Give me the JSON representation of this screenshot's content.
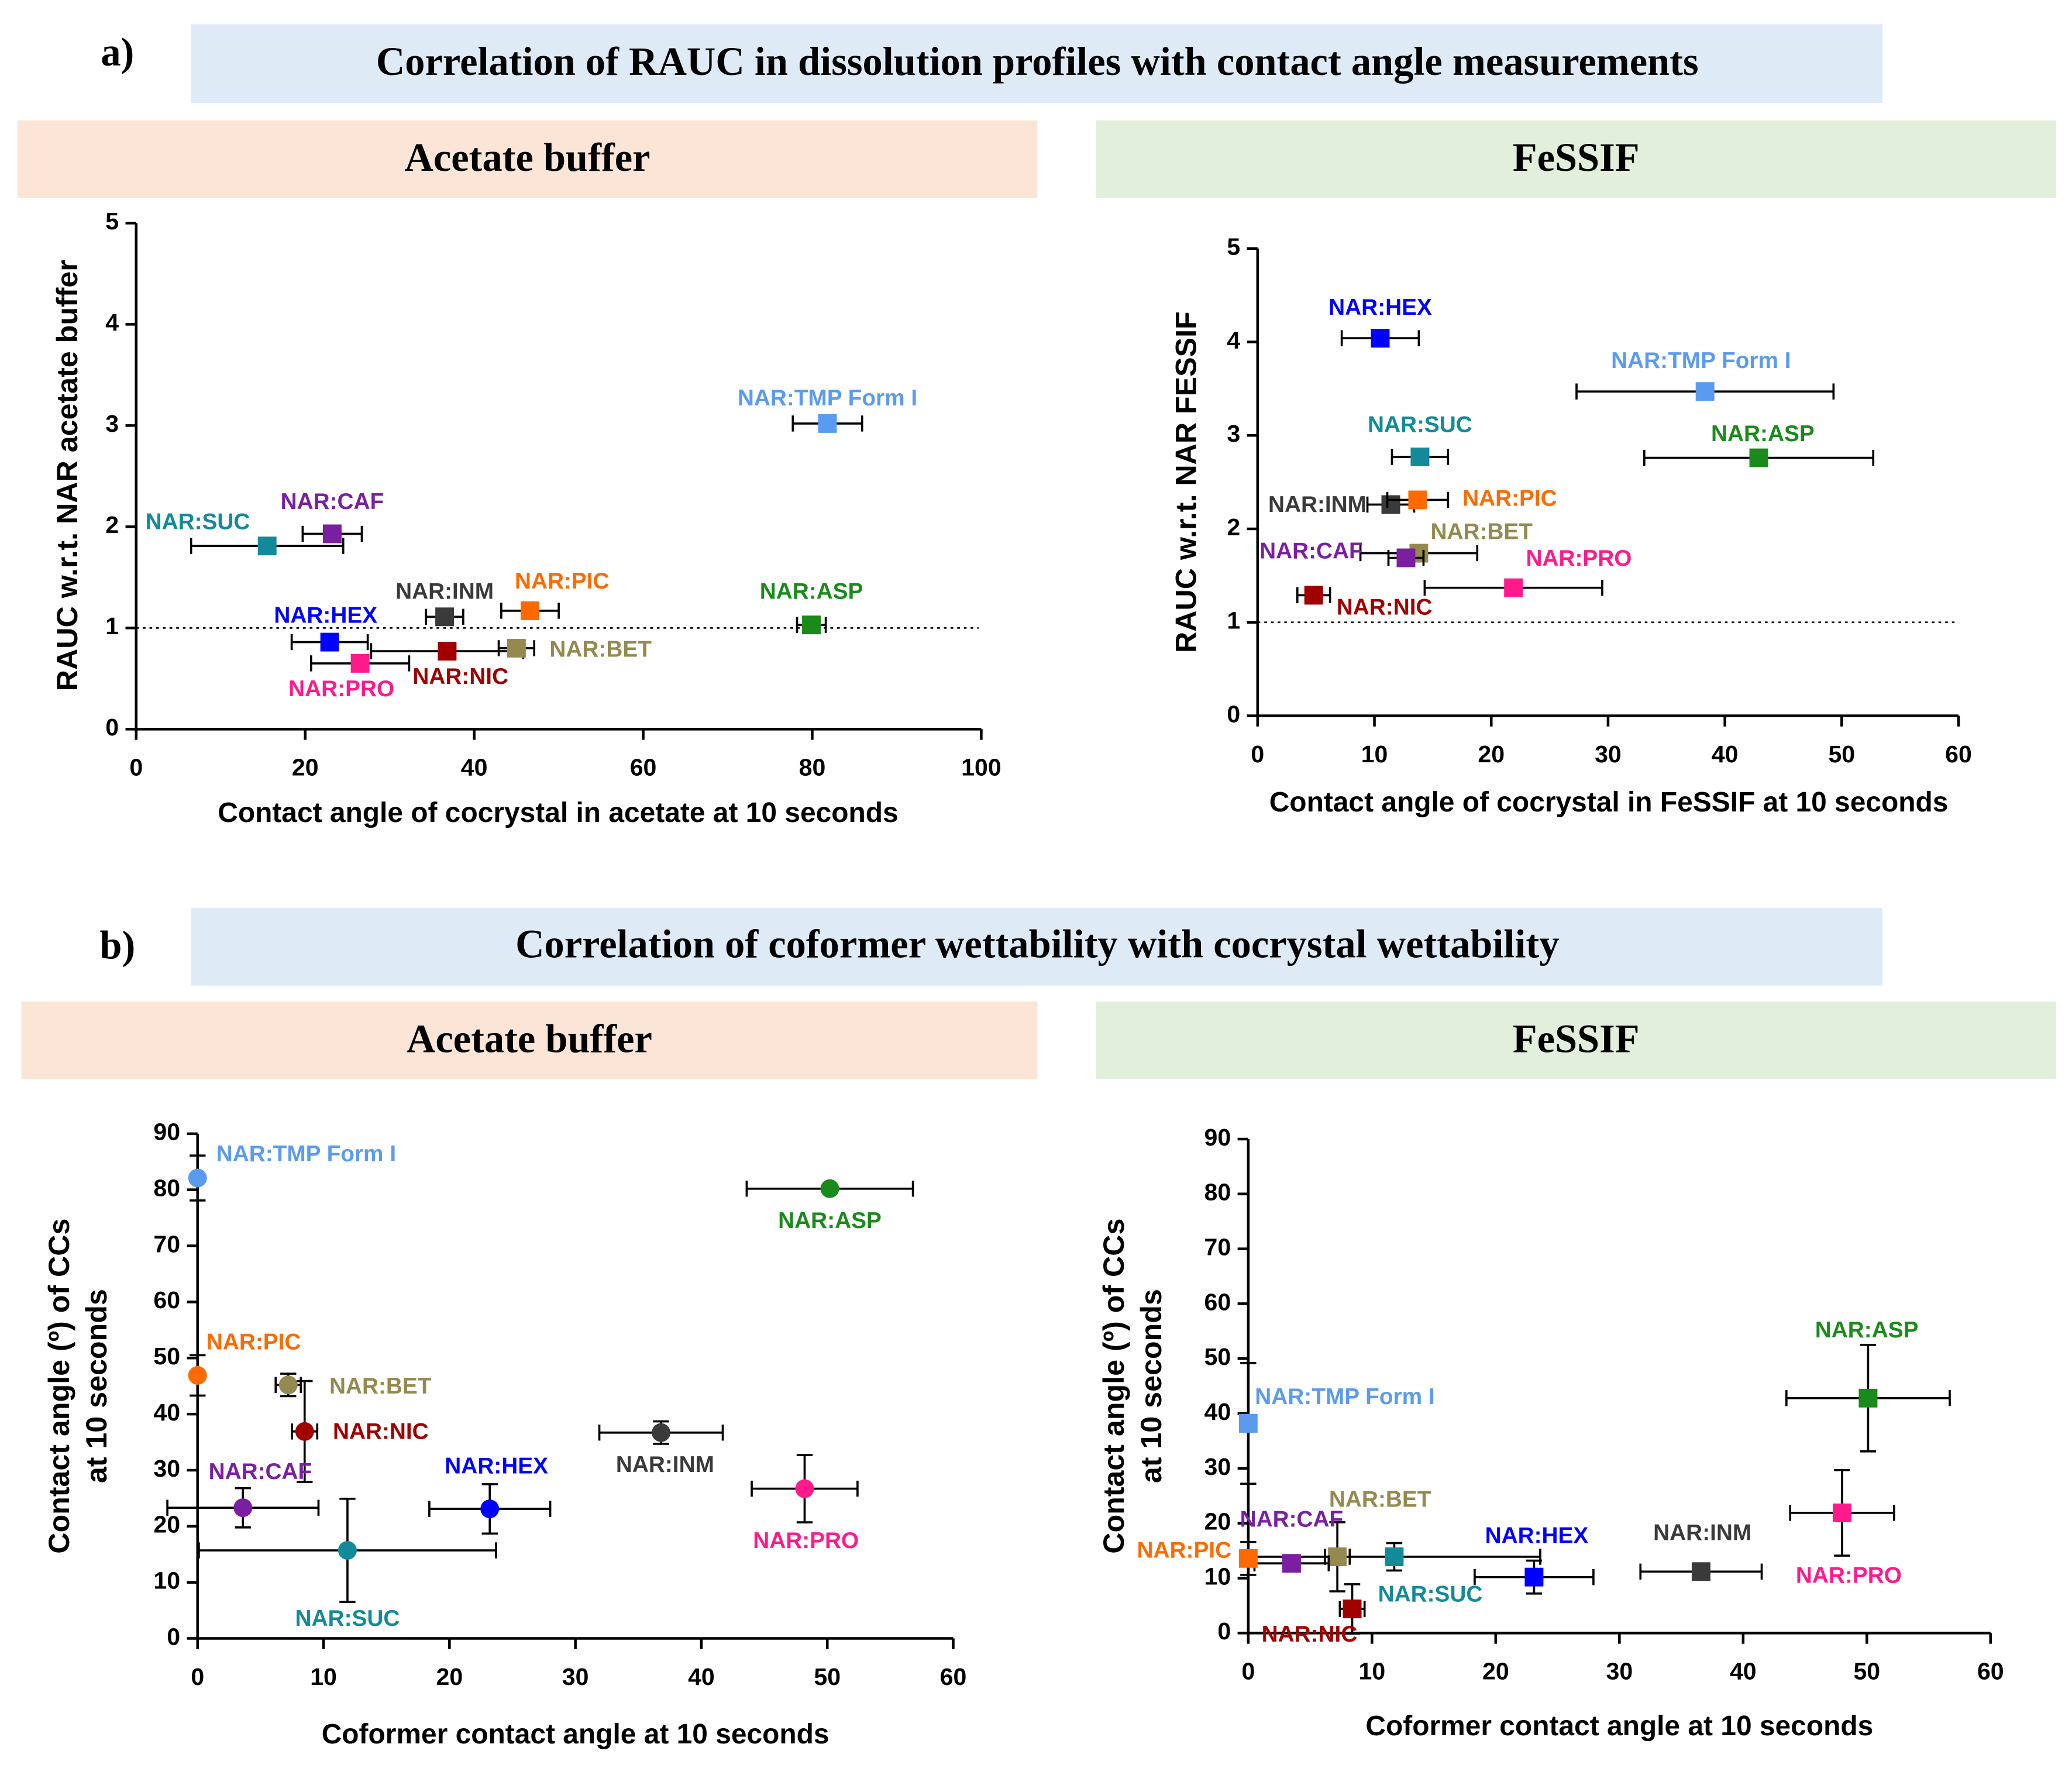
{
  "panels": [
    {
      "label": "a)",
      "title": "Correlation of RAUC in dissolution profiles with contact angle measurements"
    },
    {
      "label": "b)",
      "title": "Correlation of coformer wettability with cocrystal wettability"
    }
  ],
  "chart_data": [
    {
      "type": "scatter",
      "title": "Acetate buffer",
      "marker": "square",
      "xlabel": "Contact angle of cocrystal in acetate at 10 seconds",
      "ylabel": [
        "RAUC w.r.t. NAR acetate buffer"
      ],
      "xlim": [
        0,
        100
      ],
      "xticks": [
        0,
        20,
        40,
        60,
        80,
        100
      ],
      "ylim": [
        0,
        5
      ],
      "yticks": [
        0,
        1,
        2,
        3,
        4,
        5
      ],
      "reference_line": 1,
      "series": [
        {
          "name": "NAR:TMP Form I",
          "color": "#5b9bef",
          "x": 81.8,
          "y": 3.02,
          "xerr": 4.1,
          "yerr": 0
        },
        {
          "name": "NAR:SUC",
          "color": "#138a9a",
          "x": 15.5,
          "y": 1.81,
          "xerr": 9,
          "yerr": 0
        },
        {
          "name": "NAR:CAF",
          "color": "#7b1fa2",
          "x": 23.2,
          "y": 1.93,
          "xerr": 3.5,
          "yerr": 0
        },
        {
          "name": "NAR:INM",
          "color": "#3a3a3a",
          "x": 36.5,
          "y": 1.11,
          "xerr": 2.2,
          "yerr": 0
        },
        {
          "name": "NAR:PIC",
          "color": "#ff6a00",
          "x": 46.6,
          "y": 1.17,
          "xerr": 3.4,
          "yerr": 0
        },
        {
          "name": "NAR:ASP",
          "color": "#1a8a1a",
          "x": 79.9,
          "y": 1.03,
          "xerr": 1.7,
          "yerr": 0
        },
        {
          "name": "NAR:HEX",
          "color": "#0000ff",
          "x": 22.9,
          "y": 0.86,
          "xerr": 4.5,
          "yerr": 0
        },
        {
          "name": "NAR:PRO",
          "color": "#ff1a8c",
          "x": 26.5,
          "y": 0.65,
          "xerr": 5.8,
          "yerr": 0
        },
        {
          "name": "NAR:NIC",
          "color": "#a00000",
          "x": 36.8,
          "y": 0.77,
          "xerr": 9,
          "yerr": 0
        },
        {
          "name": "NAR:BET",
          "color": "#948a4f",
          "x": 45.0,
          "y": 0.8,
          "xerr": 2.1,
          "yerr": 0
        }
      ]
    },
    {
      "type": "scatter",
      "title": "FeSSIF",
      "marker": "square",
      "xlabel": "Contact angle of cocrystal in FeSSIF at 10 seconds",
      "ylabel": [
        "RAUC w.r.t. NAR FESSIF"
      ],
      "xlim": [
        0,
        60
      ],
      "xticks": [
        0,
        10,
        20,
        30,
        40,
        50,
        60
      ],
      "ylim": [
        0,
        5
      ],
      "yticks": [
        0,
        1,
        2,
        3,
        4,
        5
      ],
      "reference_line": 1,
      "series": [
        {
          "name": "NAR:HEX",
          "color": "#0000ff",
          "x": 10.5,
          "y": 4.04,
          "xerr": 3.3,
          "yerr": 0
        },
        {
          "name": "NAR:TMP Form I",
          "color": "#5b9bef",
          "x": 38.3,
          "y": 3.47,
          "xerr": 11,
          "yerr": 0
        },
        {
          "name": "NAR:SUC",
          "color": "#138a9a",
          "x": 13.9,
          "y": 2.77,
          "xerr": 2.4,
          "yerr": 0
        },
        {
          "name": "NAR:ASP",
          "color": "#1a8a1a",
          "x": 42.9,
          "y": 2.76,
          "xerr": 9.8,
          "yerr": 0
        },
        {
          "name": "NAR:INM",
          "color": "#3a3a3a",
          "x": 11.4,
          "y": 2.26,
          "xerr": 2,
          "yerr": 0
        },
        {
          "name": "NAR:PIC",
          "color": "#ff6a00",
          "x": 13.7,
          "y": 2.31,
          "xerr": 2.6,
          "yerr": 0
        },
        {
          "name": "NAR:BET",
          "color": "#948a4f",
          "x": 13.8,
          "y": 1.74,
          "xerr": 5,
          "yerr": 0
        },
        {
          "name": "NAR:CAF",
          "color": "#7b1fa2",
          "x": 12.7,
          "y": 1.69,
          "xerr": 1.5,
          "yerr": 0
        },
        {
          "name": "NAR:PRO",
          "color": "#ff1a8c",
          "x": 21.9,
          "y": 1.37,
          "xerr": 7.6,
          "yerr": 0
        },
        {
          "name": "NAR:NIC",
          "color": "#a00000",
          "x": 4.8,
          "y": 1.29,
          "xerr": 1.4,
          "yerr": 0
        }
      ]
    },
    {
      "type": "scatter",
      "title": "Acetate buffer",
      "marker": "circle",
      "xlabel": "Coformer contact angle at 10 seconds",
      "ylabel": [
        "Contact angle (º) of CCs",
        "at 10 seconds"
      ],
      "xlim": [
        0,
        60
      ],
      "xticks": [
        0,
        10,
        20,
        30,
        40,
        50,
        60
      ],
      "ylim": [
        0,
        90
      ],
      "yticks": [
        0,
        10,
        20,
        30,
        40,
        50,
        60,
        70,
        80,
        90
      ],
      "series": [
        {
          "name": "NAR:TMP Form I",
          "color": "#5b9bef",
          "x": 0,
          "y": 82.1,
          "xerr": 0,
          "yerr": 4
        },
        {
          "name": "NAR:ASP",
          "color": "#1a8a1a",
          "x": 50.2,
          "y": 80.2,
          "xerr": 6.6,
          "yerr": 0
        },
        {
          "name": "NAR:PIC",
          "color": "#ff6a00",
          "x": 0,
          "y": 46.9,
          "xerr": 0,
          "yerr": 3.6
        },
        {
          "name": "NAR:BET",
          "color": "#948a4f",
          "x": 7.2,
          "y": 45.2,
          "xerr": 1,
          "yerr": 2
        },
        {
          "name": "NAR:NIC",
          "color": "#a00000",
          "x": 8.5,
          "y": 36.9,
          "xerr": 1,
          "yerr": 9
        },
        {
          "name": "NAR:INM",
          "color": "#3a3a3a",
          "x": 36.8,
          "y": 36.7,
          "xerr": 4.9,
          "yerr": 2
        },
        {
          "name": "NAR:CAF",
          "color": "#7b1fa2",
          "x": 3.6,
          "y": 23.3,
          "xerr": 6,
          "yerr": 3.5
        },
        {
          "name": "NAR:HEX",
          "color": "#0000ff",
          "x": 23.2,
          "y": 23.1,
          "xerr": 4.8,
          "yerr": 4.4
        },
        {
          "name": "NAR:PRO",
          "color": "#ff1a8c",
          "x": 48.2,
          "y": 26.7,
          "xerr": 4.2,
          "yerr": 6
        },
        {
          "name": "NAR:SUC",
          "color": "#138a9a",
          "x": 11.9,
          "y": 15.7,
          "xerr": 11.8,
          "yerr": 9.2
        }
      ]
    },
    {
      "type": "scatter",
      "title": "FeSSIF",
      "marker": "square",
      "xlabel": "Coformer contact angle at 10 seconds",
      "ylabel": [
        "Contact angle (º) of CCs",
        "at 10 seconds"
      ],
      "xlim": [
        0,
        60
      ],
      "xticks": [
        0,
        10,
        20,
        30,
        40,
        50,
        60
      ],
      "ylim": [
        0,
        90
      ],
      "yticks": [
        0,
        10,
        20,
        30,
        40,
        50,
        60,
        70,
        80,
        90
      ],
      "series": [
        {
          "name": "NAR:ASP",
          "color": "#1a8a1a",
          "x": 50.1,
          "y": 42.8,
          "xerr": 6.6,
          "yerr": 9.7
        },
        {
          "name": "NAR:TMP Form I",
          "color": "#5b9bef",
          "x": 0,
          "y": 38.2,
          "xerr": 0,
          "yerr": 11
        },
        {
          "name": "NAR:PRO",
          "color": "#ff1a8c",
          "x": 48.0,
          "y": 21.9,
          "xerr": 4.2,
          "yerr": 7.8
        },
        {
          "name": "NAR:INM",
          "color": "#3a3a3a",
          "x": 36.6,
          "y": 11.2,
          "xerr": 4.9,
          "yerr": 1
        },
        {
          "name": "NAR:HEX",
          "color": "#0000ff",
          "x": 23.1,
          "y": 10.2,
          "xerr": 4.8,
          "yerr": 3
        },
        {
          "name": "NAR:SUC",
          "color": "#138a9a",
          "x": 11.8,
          "y": 13.9,
          "xerr": 11.8,
          "yerr": 2.5
        },
        {
          "name": "NAR:BET",
          "color": "#948a4f",
          "x": 7.2,
          "y": 13.9,
          "xerr": 1,
          "yerr": 6.3
        },
        {
          "name": "NAR:CAF",
          "color": "#7b1fa2",
          "x": 3.5,
          "y": 12.7,
          "xerr": 3,
          "yerr": 0
        },
        {
          "name": "NAR:PIC",
          "color": "#ff6a00",
          "x": 0,
          "y": 13.6,
          "xerr": 0,
          "yerr": 3
        },
        {
          "name": "NAR:NIC",
          "color": "#a00000",
          "x": 8.4,
          "y": 4.4,
          "xerr": 1,
          "yerr": 4.5
        }
      ]
    }
  ]
}
